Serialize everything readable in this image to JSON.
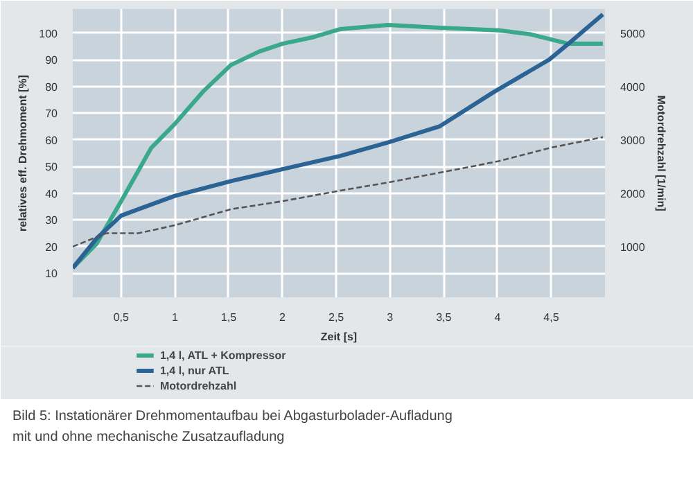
{
  "chart_data": {
    "type": "line",
    "xlabel": "Zeit [s]",
    "ylabel": "relatives eff. Drehmoment [%]",
    "y2label": "Motordrehzahl [1/min]",
    "x": [
      0.05,
      0.27,
      0.5,
      0.78,
      1.0,
      1.26,
      1.52,
      1.78,
      2.0,
      2.29,
      2.54,
      2.98,
      3.46,
      4.01,
      4.31,
      4.66,
      4.98
    ],
    "series": [
      {
        "name": "1,4 l, ATL + Kompressor",
        "color": "#3aa88a",
        "values": [
          12,
          21,
          37,
          57,
          66,
          78,
          88,
          93,
          96,
          98.5,
          101.5,
          103,
          102,
          101,
          99.5,
          96,
          96
        ]
      },
      {
        "name": "1,4 l, nur ATL",
        "color": "#2b6494",
        "x": [
          0.05,
          0.27,
          0.5,
          0.66,
          1.0,
          1.52,
          2.0,
          2.54,
          2.98,
          3.46,
          3.97,
          4.48,
          4.66,
          4.98
        ],
        "values": [
          12,
          23,
          31.6,
          34,
          39,
          44.5,
          49,
          54,
          59,
          65,
          78,
          90,
          96,
          107
        ]
      },
      {
        "name": "Motordrehzahl",
        "color": "#555555",
        "axis": "y2",
        "line_style": "dashed",
        "x": [
          0.05,
          0.36,
          0.66,
          1.0,
          1.52,
          2.0,
          2.54,
          2.98,
          3.76,
          4.01,
          4.49,
          4.98
        ],
        "values": [
          1000,
          1250,
          1250,
          1400,
          1700,
          1850,
          2050,
          2200,
          2500,
          2600,
          2850,
          3050
        ]
      }
    ],
    "xlim": [
      0.05,
      5.0
    ],
    "ylim": [
      1,
      109
    ],
    "y2lim": [
      50,
      5450
    ],
    "xticks": [
      {
        "value": 0.5,
        "label": "0,5"
      },
      1,
      {
        "value": 1.5,
        "label": "1,5"
      },
      2,
      {
        "value": 2.5,
        "label": "2,5"
      },
      3,
      {
        "value": 3.5,
        "label": "3,5"
      },
      4,
      {
        "value": 4.5,
        "label": "4,5"
      }
    ],
    "yticks": [
      10,
      20,
      30,
      40,
      50,
      60,
      70,
      80,
      90,
      100
    ],
    "y2ticks": [
      1000,
      2000,
      3000,
      4000,
      5000
    ],
    "grid": true,
    "legend": "bottom left",
    "marker": "none",
    "line_style": "solid",
    "annotations": [
      "Bild 5: Instationärer Drehmomentaufbau bei Abgasturbolader-Aufladung",
      "mit und ohne mechanische Zusatzaufladung"
    ]
  }
}
